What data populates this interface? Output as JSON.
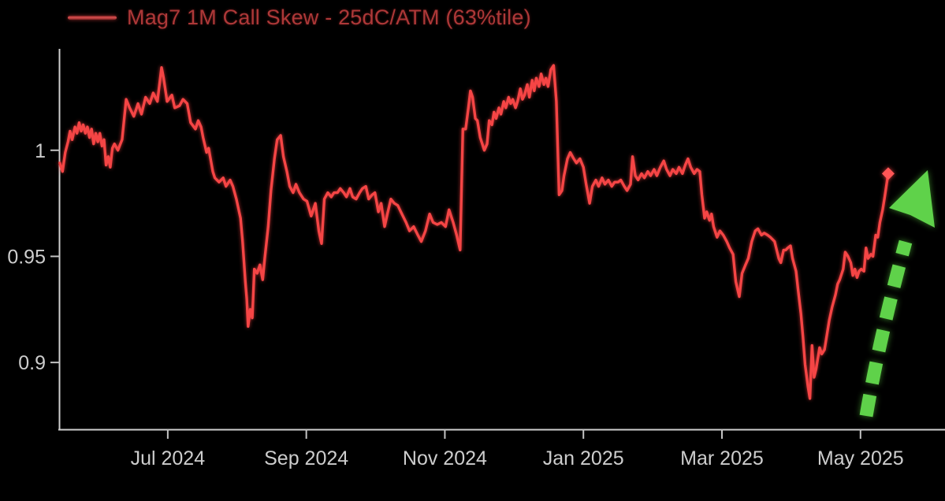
{
  "page": {
    "background": "#000000"
  },
  "chart_data": {
    "type": "line",
    "title": "",
    "legend": "Mag7 1M Call Skew - 25dC/ATM (63%tile)",
    "legend_position": "top-left",
    "grid": false,
    "x_unit": "months (0 = Jul 2024)",
    "xlim": [
      -1.58,
      11.22
    ],
    "ylim": [
      0.8685,
      1.0478
    ],
    "x_ticks": [
      {
        "t": 0,
        "label": "Jul 2024"
      },
      {
        "t": 2,
        "label": "Sep 2024"
      },
      {
        "t": 4,
        "label": "Nov 2024"
      },
      {
        "t": 6,
        "label": "Jan 2025"
      },
      {
        "t": 8,
        "label": "Mar 2025"
      },
      {
        "t": 10,
        "label": "May 2025"
      }
    ],
    "y_ticks": [
      {
        "v": 0.9,
        "label": "0.9"
      },
      {
        "v": 0.95,
        "label": "0.95"
      },
      {
        "v": 1,
        "label": "1"
      }
    ],
    "colors": {
      "background": "#000000",
      "axis": "#cfcfcf",
      "tick_label": "#cdcdcd",
      "series": "#f54545",
      "legend_text": "#ad3838",
      "end_marker": "#ff5656",
      "trend_arrow": "#5fd24a"
    },
    "end_marker": {
      "shape": "diamond"
    },
    "annotation_arrow": {
      "type": "dashed-arrow-up"
    },
    "series": [
      {
        "name": "Mag7 1M Call Skew - 25dC/ATM (63%tile)",
        "points": [
          [
            -1.56,
            0.994
          ],
          [
            -1.52,
            0.99
          ],
          [
            -1.48,
            0.999
          ],
          [
            -1.44,
            1.004
          ],
          [
            -1.41,
            1.009
          ],
          [
            -1.38,
            1.005
          ],
          [
            -1.34,
            1.011
          ],
          [
            -1.31,
            1.008
          ],
          [
            -1.28,
            1.013
          ],
          [
            -1.25,
            1.009
          ],
          [
            -1.22,
            1.012
          ],
          [
            -1.19,
            1.008
          ],
          [
            -1.16,
            1.011
          ],
          [
            -1.13,
            1.006
          ],
          [
            -1.1,
            1.01
          ],
          [
            -1.07,
            1.003
          ],
          [
            -1.04,
            1.008
          ],
          [
            -1.01,
            1.004
          ],
          [
            -0.98,
            1.008
          ],
          [
            -0.95,
            1.002
          ],
          [
            -0.92,
            1.005
          ],
          [
            -0.89,
            0.993
          ],
          [
            -0.86,
            0.997
          ],
          [
            -0.83,
            0.992
          ],
          [
            -0.8,
            1.001
          ],
          [
            -0.77,
            1.003
          ],
          [
            -0.72,
            1.0
          ],
          [
            -0.66,
            1.005
          ],
          [
            -0.6,
            1.024
          ],
          [
            -0.55,
            1.02
          ],
          [
            -0.49,
            1.016
          ],
          [
            -0.43,
            1.022
          ],
          [
            -0.38,
            1.017
          ],
          [
            -0.32,
            1.025
          ],
          [
            -0.26,
            1.022
          ],
          [
            -0.21,
            1.027
          ],
          [
            -0.15,
            1.023
          ],
          [
            -0.09,
            1.039
          ],
          [
            -0.06,
            1.034
          ],
          [
            -0.01,
            1.023
          ],
          [
            0.06,
            1.026
          ],
          [
            0.1,
            1.02
          ],
          [
            0.17,
            1.021
          ],
          [
            0.22,
            1.024
          ],
          [
            0.28,
            1.022
          ],
          [
            0.33,
            1.013
          ],
          [
            0.4,
            1.01
          ],
          [
            0.44,
            1.014
          ],
          [
            0.48,
            1.011
          ],
          [
            0.51,
            1.006
          ],
          [
            0.56,
            0.999
          ],
          [
            0.59,
            1.001
          ],
          [
            0.65,
            0.99
          ],
          [
            0.68,
            0.987
          ],
          [
            0.74,
            0.985
          ],
          [
            0.8,
            0.987
          ],
          [
            0.84,
            0.983
          ],
          [
            0.9,
            0.986
          ],
          [
            0.94,
            0.983
          ],
          [
            0.99,
            0.977
          ],
          [
            1.05,
            0.968
          ],
          [
            1.08,
            0.957
          ],
          [
            1.12,
            0.938
          ],
          [
            1.14,
            0.93
          ],
          [
            1.16,
            0.917
          ],
          [
            1.19,
            0.925
          ],
          [
            1.22,
            0.921
          ],
          [
            1.25,
            0.944
          ],
          [
            1.29,
            0.942
          ],
          [
            1.33,
            0.946
          ],
          [
            1.37,
            0.939
          ],
          [
            1.4,
            0.949
          ],
          [
            1.45,
            0.964
          ],
          [
            1.49,
            0.981
          ],
          [
            1.54,
            0.996
          ],
          [
            1.58,
            1.005
          ],
          [
            1.63,
            1.007
          ],
          [
            1.67,
            0.997
          ],
          [
            1.72,
            0.99
          ],
          [
            1.76,
            0.983
          ],
          [
            1.81,
            0.98
          ],
          [
            1.85,
            0.984
          ],
          [
            1.9,
            0.98
          ],
          [
            1.96,
            0.977
          ],
          [
            2.01,
            0.976
          ],
          [
            2.07,
            0.969
          ],
          [
            2.13,
            0.975
          ],
          [
            2.18,
            0.962
          ],
          [
            2.22,
            0.956
          ],
          [
            2.26,
            0.977
          ],
          [
            2.31,
            0.98
          ],
          [
            2.36,
            0.978
          ],
          [
            2.4,
            0.98
          ],
          [
            2.45,
            0.98
          ],
          [
            2.49,
            0.982
          ],
          [
            2.54,
            0.98
          ],
          [
            2.58,
            0.978
          ],
          [
            2.63,
            0.982
          ],
          [
            2.67,
            0.978
          ],
          [
            2.72,
            0.977
          ],
          [
            2.77,
            0.98
          ],
          [
            2.81,
            0.982
          ],
          [
            2.86,
            0.983
          ],
          [
            2.9,
            0.977
          ],
          [
            2.95,
            0.979
          ],
          [
            2.99,
            0.98
          ],
          [
            3.04,
            0.971
          ],
          [
            3.08,
            0.975
          ],
          [
            3.13,
            0.964
          ],
          [
            3.17,
            0.97
          ],
          [
            3.22,
            0.977
          ],
          [
            3.27,
            0.975
          ],
          [
            3.32,
            0.974
          ],
          [
            3.38,
            0.97
          ],
          [
            3.44,
            0.966
          ],
          [
            3.49,
            0.962
          ],
          [
            3.55,
            0.964
          ],
          [
            3.61,
            0.96
          ],
          [
            3.66,
            0.957
          ],
          [
            3.72,
            0.962
          ],
          [
            3.78,
            0.97
          ],
          [
            3.83,
            0.966
          ],
          [
            3.89,
            0.965
          ],
          [
            3.95,
            0.966
          ],
          [
            4.01,
            0.964
          ],
          [
            4.06,
            0.972
          ],
          [
            4.12,
            0.966
          ],
          [
            4.17,
            0.96
          ],
          [
            4.22,
            0.953
          ],
          [
            4.26,
            1.01
          ],
          [
            4.3,
            1.01
          ],
          [
            4.34,
            1.02
          ],
          [
            4.37,
            1.028
          ],
          [
            4.4,
            1.025
          ],
          [
            4.44,
            1.015
          ],
          [
            4.47,
            1.014
          ],
          [
            4.51,
            1.006
          ],
          [
            4.54,
            1.003
          ],
          [
            4.57,
            1.0
          ],
          [
            4.61,
            1.003
          ],
          [
            4.64,
            1.014
          ],
          [
            4.68,
            1.012
          ],
          [
            4.71,
            1.018
          ],
          [
            4.74,
            1.015
          ],
          [
            4.78,
            1.02
          ],
          [
            4.81,
            1.017
          ],
          [
            4.85,
            1.023
          ],
          [
            4.88,
            1.02
          ],
          [
            4.92,
            1.025
          ],
          [
            4.95,
            1.022
          ],
          [
            4.98,
            1.024
          ],
          [
            5.02,
            1.02
          ],
          [
            5.05,
            1.023
          ],
          [
            5.09,
            1.029
          ],
          [
            5.12,
            1.024
          ],
          [
            5.15,
            1.026
          ],
          [
            5.19,
            1.031
          ],
          [
            5.22,
            1.025
          ],
          [
            5.26,
            1.033
          ],
          [
            5.29,
            1.028
          ],
          [
            5.32,
            1.034
          ],
          [
            5.36,
            1.03
          ],
          [
            5.39,
            1.036
          ],
          [
            5.43,
            1.031
          ],
          [
            5.46,
            1.034
          ],
          [
            5.49,
            1.03
          ],
          [
            5.53,
            1.038
          ],
          [
            5.57,
            1.04
          ],
          [
            5.61,
            1.023
          ],
          [
            5.65,
            0.979
          ],
          [
            5.69,
            0.981
          ],
          [
            5.72,
            0.988
          ],
          [
            5.77,
            0.996
          ],
          [
            5.81,
            0.999
          ],
          [
            5.86,
            0.996
          ],
          [
            5.9,
            0.994
          ],
          [
            5.95,
            0.996
          ],
          [
            6.0,
            0.992
          ],
          [
            6.04,
            0.984
          ],
          [
            6.09,
            0.975
          ],
          [
            6.13,
            0.983
          ],
          [
            6.18,
            0.986
          ],
          [
            6.22,
            0.983
          ],
          [
            6.27,
            0.987
          ],
          [
            6.31,
            0.984
          ],
          [
            6.36,
            0.986
          ],
          [
            6.41,
            0.983
          ],
          [
            6.45,
            0.985
          ],
          [
            6.5,
            0.985
          ],
          [
            6.54,
            0.986
          ],
          [
            6.59,
            0.983
          ],
          [
            6.63,
            0.981
          ],
          [
            6.68,
            0.984
          ],
          [
            6.71,
            0.997
          ],
          [
            6.75,
            0.988
          ],
          [
            6.79,
            0.986
          ],
          [
            6.84,
            0.989
          ],
          [
            6.88,
            0.987
          ],
          [
            6.93,
            0.99
          ],
          [
            6.97,
            0.988
          ],
          [
            7.02,
            0.991
          ],
          [
            7.06,
            0.988
          ],
          [
            7.11,
            0.992
          ],
          [
            7.16,
            0.995
          ],
          [
            7.2,
            0.991
          ],
          [
            7.25,
            0.988
          ],
          [
            7.29,
            0.991
          ],
          [
            7.34,
            0.989
          ],
          [
            7.38,
            0.992
          ],
          [
            7.43,
            0.989
          ],
          [
            7.47,
            0.993
          ],
          [
            7.51,
            0.996
          ],
          [
            7.55,
            0.992
          ],
          [
            7.6,
            0.989
          ],
          [
            7.64,
            0.991
          ],
          [
            7.68,
            0.99
          ],
          [
            7.71,
            0.979
          ],
          [
            7.75,
            0.968
          ],
          [
            7.78,
            0.971
          ],
          [
            7.82,
            0.967
          ],
          [
            7.85,
            0.97
          ],
          [
            7.88,
            0.964
          ],
          [
            7.93,
            0.959
          ],
          [
            7.97,
            0.962
          ],
          [
            8.02,
            0.96
          ],
          [
            8.07,
            0.957
          ],
          [
            8.11,
            0.954
          ],
          [
            8.16,
            0.951
          ],
          [
            8.2,
            0.938
          ],
          [
            8.25,
            0.931
          ],
          [
            8.29,
            0.942
          ],
          [
            8.34,
            0.946
          ],
          [
            8.38,
            0.949
          ],
          [
            8.43,
            0.957
          ],
          [
            8.48,
            0.962
          ],
          [
            8.52,
            0.963
          ],
          [
            8.57,
            0.96
          ],
          [
            8.61,
            0.961
          ],
          [
            8.66,
            0.96
          ],
          [
            8.7,
            0.959
          ],
          [
            8.76,
            0.957
          ],
          [
            8.82,
            0.949
          ],
          [
            8.85,
            0.947
          ],
          [
            8.89,
            0.953
          ],
          [
            8.92,
            0.953
          ],
          [
            8.95,
            0.954
          ],
          [
            8.99,
            0.955
          ],
          [
            9.02,
            0.949
          ],
          [
            9.07,
            0.943
          ],
          [
            9.1,
            0.934
          ],
          [
            9.14,
            0.923
          ],
          [
            9.17,
            0.912
          ],
          [
            9.2,
            0.899
          ],
          [
            9.24,
            0.889
          ],
          [
            9.27,
            0.883
          ],
          [
            9.3,
            0.908
          ],
          [
            9.33,
            0.893
          ],
          [
            9.36,
            0.897
          ],
          [
            9.41,
            0.907
          ],
          [
            9.44,
            0.904
          ],
          [
            9.48,
            0.906
          ],
          [
            9.55,
            0.92
          ],
          [
            9.59,
            0.926
          ],
          [
            9.64,
            0.932
          ],
          [
            9.67,
            0.937
          ],
          [
            9.7,
            0.939
          ],
          [
            9.75,
            0.944
          ],
          [
            9.78,
            0.952
          ],
          [
            9.82,
            0.95
          ],
          [
            9.86,
            0.947
          ],
          [
            9.89,
            0.941
          ],
          [
            9.92,
            0.944
          ],
          [
            9.95,
            0.94
          ],
          [
            9.98,
            0.943
          ],
          [
            10.01,
            0.944
          ],
          [
            10.05,
            0.943
          ],
          [
            10.08,
            0.954
          ],
          [
            10.11,
            0.949
          ],
          [
            10.15,
            0.951
          ],
          [
            10.18,
            0.95
          ],
          [
            10.22,
            0.96
          ],
          [
            10.25,
            0.959
          ],
          [
            10.28,
            0.966
          ],
          [
            10.32,
            0.972
          ],
          [
            10.35,
            0.978
          ],
          [
            10.4,
            0.989
          ]
        ]
      }
    ]
  }
}
